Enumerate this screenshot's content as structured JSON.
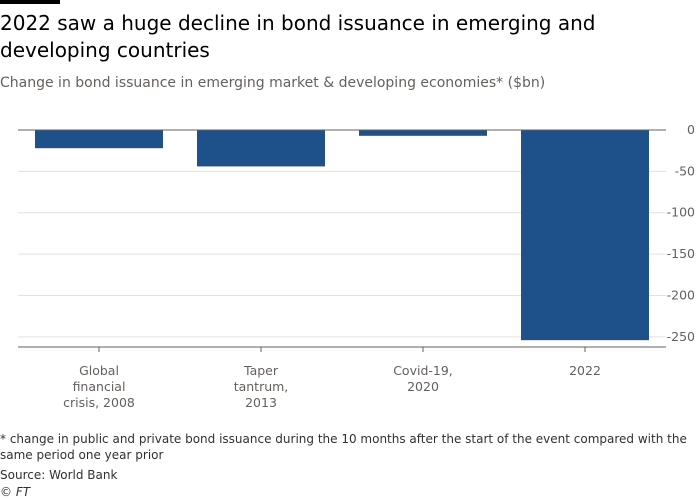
{
  "title": "2022 saw a huge decline in bond issuance in emerging and developing countries",
  "subtitle": "Change in bond issuance in emerging market & developing economies* ($bn)",
  "footnote": "* change in public and private bond issuance during the 10 months after the start of the event compared with the same period one year prior",
  "source": "Source: World Bank",
  "copyright": "© FT",
  "colors": {
    "bar": "#1e508a",
    "grid": "#e6e1dc",
    "axis": "#66605c",
    "text": "#66605c"
  },
  "chart_data": {
    "type": "bar",
    "categories": [
      [
        "Global",
        "financial",
        "crisis, 2008"
      ],
      [
        "Taper",
        "tantrum,",
        "2013"
      ],
      [
        "Covid-19,",
        "2020"
      ],
      [
        "2022"
      ]
    ],
    "values": [
      -22,
      -44,
      -7,
      -254
    ],
    "ylim": [
      -255,
      0
    ],
    "yticks": [
      0,
      -50,
      -100,
      -150,
      -200,
      -250
    ],
    "ytick_labels": [
      "0",
      "-50",
      "-100",
      "-150",
      "-200",
      "-250"
    ],
    "grid": true,
    "y_axis_position": "right"
  }
}
